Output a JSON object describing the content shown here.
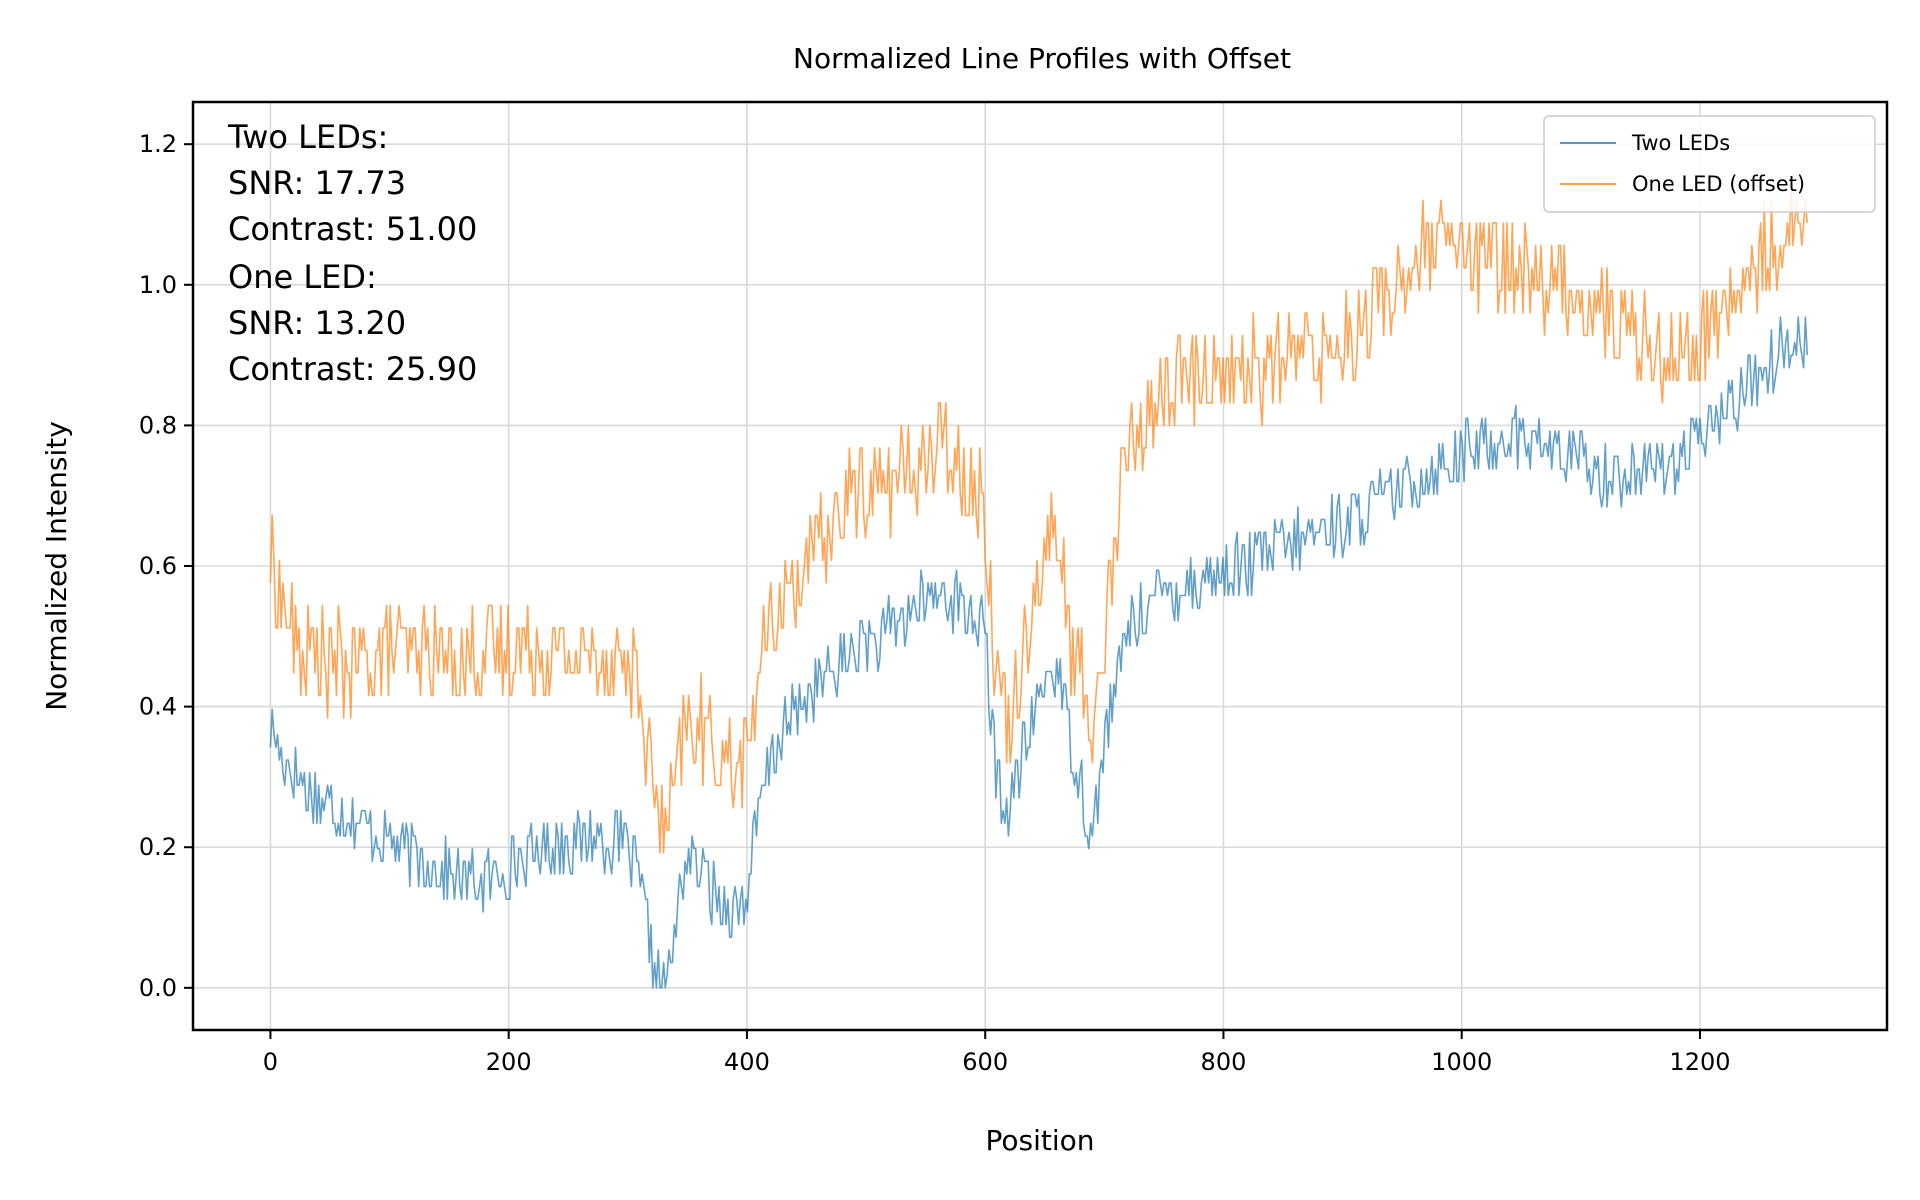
{
  "chart_data": {
    "type": "line",
    "title": "Normalized Line Profiles with Offset",
    "xlabel": "Position",
    "ylabel": "Normalized Intensity",
    "xlim": [
      -65,
      1357
    ],
    "ylim": [
      -0.06,
      1.26
    ],
    "x_ticks": [
      0,
      200,
      400,
      600,
      800,
      1000,
      1200
    ],
    "y_ticks": [
      0.0,
      0.2,
      0.4,
      0.6,
      0.8,
      1.0,
      1.2
    ],
    "x_tick_labels": [
      "0",
      "200",
      "400",
      "600",
      "800",
      "1000",
      "1200"
    ],
    "y_tick_labels": [
      "0.0",
      "0.2",
      "0.4",
      "0.6",
      "0.8",
      "1.0",
      "1.2"
    ],
    "grid": true,
    "legend_position": "top-right",
    "colors": {
      "two_leds": "#1f77b4",
      "one_led": "#ff7f0e"
    },
    "annotations": [
      "Two LEDs:",
      "SNR: 17.73",
      "Contrast: 51.00",
      "One LED:",
      "SNR: 13.20",
      "Contrast: 25.90"
    ],
    "series": [
      {
        "name": "Two LEDs",
        "color": "#1f77b4",
        "x": [
          0,
          10,
          20,
          30,
          40,
          50,
          60,
          70,
          80,
          90,
          100,
          110,
          120,
          130,
          140,
          150,
          160,
          170,
          180,
          190,
          200,
          210,
          220,
          230,
          240,
          250,
          260,
          270,
          280,
          290,
          300,
          310,
          315,
          320,
          325,
          330,
          335,
          340,
          345,
          350,
          360,
          370,
          380,
          390,
          400,
          410,
          420,
          430,
          440,
          450,
          460,
          470,
          480,
          490,
          500,
          510,
          520,
          530,
          540,
          550,
          560,
          570,
          580,
          590,
          600,
          605,
          610,
          615,
          620,
          625,
          630,
          640,
          650,
          660,
          665,
          670,
          680,
          685,
          690,
          695,
          700,
          710,
          720,
          730,
          740,
          750,
          760,
          780,
          800,
          820,
          840,
          860,
          880,
          900,
          920,
          940,
          960,
          980,
          1000,
          1020,
          1040,
          1060,
          1080,
          1100,
          1120,
          1140,
          1160,
          1180,
          1200,
          1220,
          1240,
          1260,
          1280,
          1290
        ],
        "y": [
          0.37,
          0.33,
          0.31,
          0.28,
          0.27,
          0.26,
          0.25,
          0.24,
          0.23,
          0.22,
          0.21,
          0.2,
          0.19,
          0.18,
          0.17,
          0.16,
          0.15,
          0.15,
          0.15,
          0.16,
          0.17,
          0.18,
          0.19,
          0.2,
          0.21,
          0.21,
          0.21,
          0.22,
          0.21,
          0.21,
          0.2,
          0.15,
          0.1,
          0.05,
          0.01,
          0.0,
          0.02,
          0.08,
          0.15,
          0.19,
          0.17,
          0.14,
          0.12,
          0.11,
          0.13,
          0.25,
          0.33,
          0.36,
          0.39,
          0.41,
          0.43,
          0.44,
          0.46,
          0.48,
          0.5,
          0.49,
          0.51,
          0.52,
          0.54,
          0.55,
          0.56,
          0.56,
          0.54,
          0.53,
          0.5,
          0.38,
          0.3,
          0.26,
          0.25,
          0.28,
          0.32,
          0.38,
          0.44,
          0.45,
          0.43,
          0.36,
          0.3,
          0.25,
          0.21,
          0.28,
          0.35,
          0.43,
          0.52,
          0.53,
          0.55,
          0.56,
          0.57,
          0.58,
          0.59,
          0.6,
          0.62,
          0.63,
          0.65,
          0.66,
          0.68,
          0.7,
          0.72,
          0.74,
          0.76,
          0.77,
          0.79,
          0.78,
          0.76,
          0.75,
          0.73,
          0.73,
          0.74,
          0.75,
          0.78,
          0.82,
          0.86,
          0.89,
          0.93,
          0.93
        ]
      },
      {
        "name": "One LED (offset)",
        "color": "#ff7f0e",
        "x": [
          0,
          10,
          20,
          30,
          40,
          50,
          60,
          70,
          80,
          90,
          100,
          110,
          120,
          130,
          140,
          150,
          160,
          170,
          180,
          190,
          200,
          210,
          220,
          230,
          240,
          250,
          260,
          270,
          280,
          290,
          300,
          310,
          315,
          320,
          325,
          330,
          335,
          340,
          345,
          350,
          360,
          370,
          380,
          390,
          400,
          410,
          420,
          430,
          440,
          450,
          460,
          470,
          480,
          490,
          500,
          510,
          520,
          530,
          540,
          550,
          560,
          570,
          580,
          590,
          600,
          605,
          610,
          615,
          620,
          625,
          630,
          640,
          650,
          660,
          665,
          670,
          680,
          685,
          690,
          695,
          700,
          710,
          720,
          730,
          740,
          750,
          760,
          780,
          800,
          820,
          840,
          860,
          880,
          900,
          920,
          940,
          960,
          980,
          1000,
          1020,
          1040,
          1060,
          1080,
          1100,
          1120,
          1140,
          1160,
          1180,
          1200,
          1220,
          1240,
          1260,
          1280,
          1290
        ],
        "y": [
          0.6,
          0.54,
          0.5,
          0.47,
          0.47,
          0.46,
          0.46,
          0.46,
          0.47,
          0.47,
          0.48,
          0.48,
          0.47,
          0.48,
          0.48,
          0.47,
          0.47,
          0.47,
          0.47,
          0.48,
          0.48,
          0.48,
          0.48,
          0.48,
          0.48,
          0.47,
          0.47,
          0.48,
          0.47,
          0.47,
          0.46,
          0.42,
          0.36,
          0.3,
          0.25,
          0.22,
          0.24,
          0.28,
          0.34,
          0.37,
          0.37,
          0.35,
          0.33,
          0.31,
          0.33,
          0.45,
          0.52,
          0.55,
          0.58,
          0.6,
          0.62,
          0.65,
          0.68,
          0.7,
          0.72,
          0.71,
          0.72,
          0.73,
          0.74,
          0.75,
          0.76,
          0.77,
          0.74,
          0.72,
          0.68,
          0.55,
          0.45,
          0.4,
          0.37,
          0.42,
          0.48,
          0.55,
          0.62,
          0.65,
          0.6,
          0.5,
          0.44,
          0.4,
          0.38,
          0.42,
          0.5,
          0.65,
          0.78,
          0.8,
          0.82,
          0.84,
          0.86,
          0.87,
          0.88,
          0.88,
          0.88,
          0.9,
          0.91,
          0.92,
          0.95,
          0.99,
          1.03,
          1.05,
          1.05,
          1.03,
          1.03,
          1.02,
          1.0,
          0.98,
          0.96,
          0.94,
          0.92,
          0.9,
          0.92,
          0.96,
          1.0,
          1.06,
          1.1,
          1.12
        ]
      }
    ]
  }
}
